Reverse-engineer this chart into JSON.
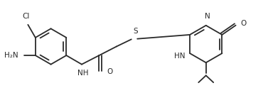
{
  "bg": "#ffffff",
  "lc": "#2a2a2a",
  "lw": 1.3,
  "fs": 7.5,
  "dpi": 100,
  "fig_w": 3.77,
  "fig_h": 1.31,
  "xlim": [
    0,
    10.8
  ],
  "ylim": [
    0.2,
    3.8
  ]
}
